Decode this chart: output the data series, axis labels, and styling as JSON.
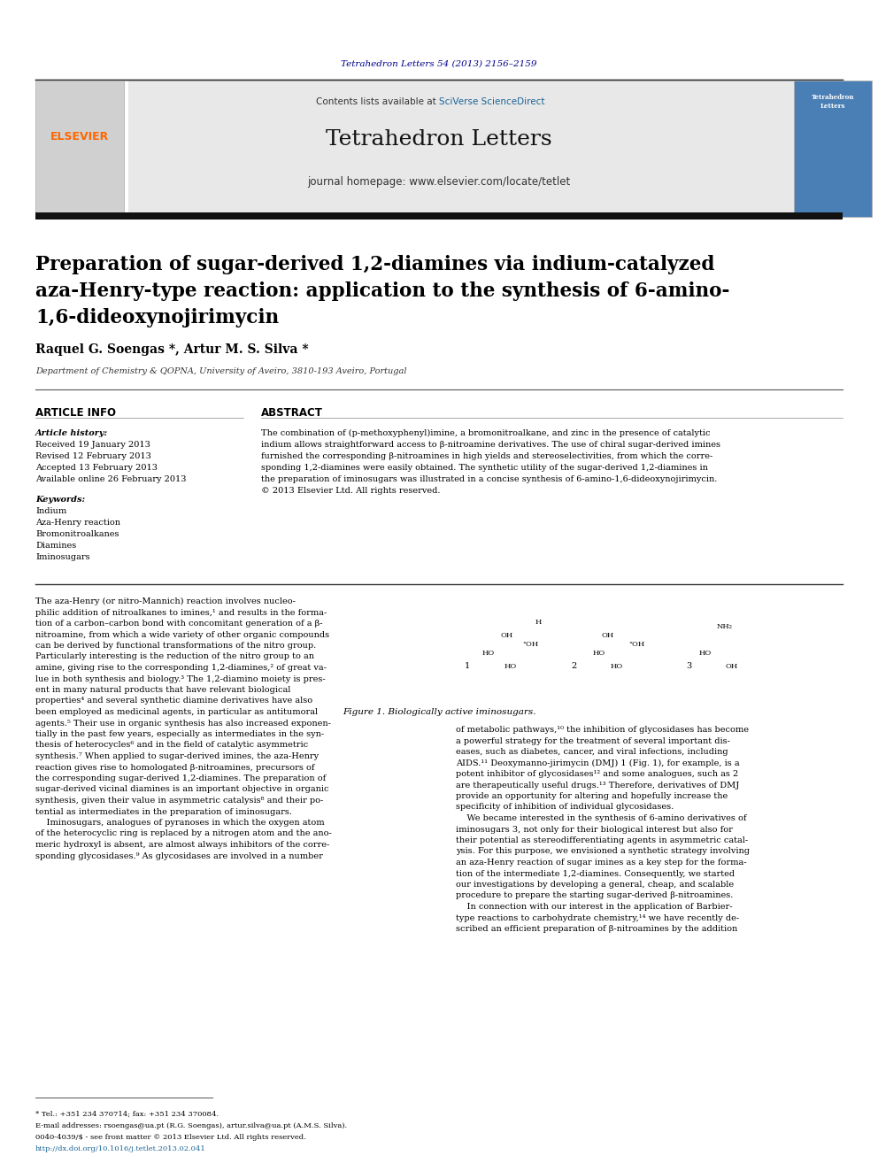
{
  "bg_color": "#ffffff",
  "top_citation": "Tetrahedron Letters 54 (2013) 2156–2159",
  "top_citation_color": "#00008B",
  "header_bg": "#e8e8e8",
  "contents_text": "Contents lists available at ",
  "sciverse_text": "SciVerse ScienceDirect",
  "sciverse_color": "#1a6496",
  "journal_title": "Tetrahedron Letters",
  "journal_homepage": "journal homepage: www.elsevier.com/locate/tetlet",
  "black_bar_color": "#1a1a2e",
  "paper_title_line1": "Preparation of sugar-derived 1,2-diamines via indium-catalyzed",
  "paper_title_line2": "aza-Henry-type reaction: application to the synthesis of 6-amino-",
  "paper_title_line3": "1,6-dideoxynojirimycin",
  "authors": "Raquel G. Soengas *, Artur M. S. Silva *",
  "authors_color": "#000000",
  "affiliation": "Department of Chemistry & QOPNA, University of Aveiro, 3810-193 Aveiro, Portugal",
  "article_info_label": "ARTICLE INFO",
  "article_history_label": "Article history:",
  "received": "Received 19 January 2013",
  "revised": "Revised 12 February 2013",
  "accepted": "Accepted 13 February 2013",
  "available": "Available online 26 February 2013",
  "keywords_label": "Keywords:",
  "keyword1": "Indium",
  "keyword2": "Aza-Henry reaction",
  "keyword3": "Bromonitroalkanes",
  "keyword4": "Diamines",
  "keyword5": "Iminosugars",
  "abstract_label": "ABSTRACT",
  "abstract_text": "The combination of (p-methoxyphenyl)imine, a bromonitroalkane, and zinc in the presence of catalytic\nindium allows straightforward access to β-nitroamine derivatives. The use of chiral sugar-derived imines\nfurnished the corresponding β-nitroamines in high yields and stereoselectivities, from which the corre-\nsponding 1,2-diamines were easily obtained. The synthetic utility of the sugar-derived 1,2-diamines in\nthe preparation of iminosugars was illustrated in a concise synthesis of 6-amino-1,6-dideoxynojirimycin.\n© 2013 Elsevier Ltd. All rights reserved.",
  "body_left_col": "The aza-Henry (or nitro-Mannich) reaction involves nucleo-\nphilic addition of nitroalkanes to imines,¹ and results in the forma-\ntion of a carbon–carbon bond with concomitant generation of a β-\nnitroamine, from which a wide variety of other organic compounds\ncan be derived by functional transformations of the nitro group.\nParticularly interesting is the reduction of the nitro group to an\namine, giving rise to the corresponding 1,2-diamines,² of great va-\nlue in both synthesis and biology.³ The 1,2-diamino moiety is pres-\nent in many natural products that have relevant biological\nproperties⁴ and several synthetic diamine derivatives have also\nbeen employed as medicinal agents, in particular as antitumoral\nagents.⁵ Their use in organic synthesis has also increased exponen-\ntially in the past few years, especially as intermediates in the syn-\nthesis of heterocycles⁶ and in the field of catalytic asymmetric\nsynthesis.⁷ When applied to sugar-derived imines, the aza-Henry\nreaction gives rise to homologated β-nitroamines, precursors of\nthe corresponding sugar-derived 1,2-diamines. The preparation of\nsugar-derived vicinal diamines is an important objective in organic\nsynthesis, given their value in asymmetric catalysis⁸ and their po-\ntential as intermediates in the preparation of iminosugars.\n    Iminosugars, analogues of pyranoses in which the oxygen atom\nof the heterocyclic ring is replaced by a nitrogen atom and the ano-\nmeric hydroxyl is absent, are almost always inhibitors of the corre-\nsponding glycosidases.⁹ As glycosidases are involved in a number",
  "body_right_col": "of metabolic pathways,¹⁰ the inhibition of glycosidases has become\na powerful strategy for the treatment of several important dis-\neases, such as diabetes, cancer, and viral infections, including\nAIDS.¹¹ Deoxymanno-jirimycin (DMJ) 1 (Fig. 1), for example, is a\npotent inhibitor of glycosidases¹² and some analogues, such as 2\nare therapeutically useful drugs.¹³ Therefore, derivatives of DMJ\nprovide an opportunity for altering and hopefully increase the\nspecificity of inhibition of individual glycosidases.\n    We became interested in the synthesis of 6-amino derivatives of\niminosugars 3, not only for their biological interest but also for\ntheir potential as stereodifferentiating agents in asymmetric catal-\nysis. For this purpose, we envisioned a synthetic strategy involving\nan aza-Henry reaction of sugar imines as a key step for the forma-\ntion of the intermediate 1,2-diamines. Consequently, we started\nour investigations by developing a general, cheap, and scalable\nprocedure to prepare the starting sugar-derived β-nitroamines.\n    In connection with our interest in the application of Barbier-\ntype reactions to carbohydrate chemistry,¹⁴ we have recently de-\nscribed an efficient preparation of β-nitroamines by the addition",
  "figure_caption": "Figure 1. Biologically active iminosugars.",
  "footnote1": "* Tel.: +351 234 370714; fax: +351 234 370084.",
  "footnote2": "E-mail addresses: rsoengas@ua.pt (R.G. Soengas), artur.silva@ua.pt (A.M.S. Silva).",
  "footnote3": "0040-4039/$ - see front matter © 2013 Elsevier Ltd. All rights reserved.",
  "footnote4": "http://dx.doi.org/10.1016/j.tetlet.2013.02.041",
  "elsevier_color": "#FF6600",
  "separator_color": "#000000",
  "page_width": 9.92,
  "page_height": 13.23
}
